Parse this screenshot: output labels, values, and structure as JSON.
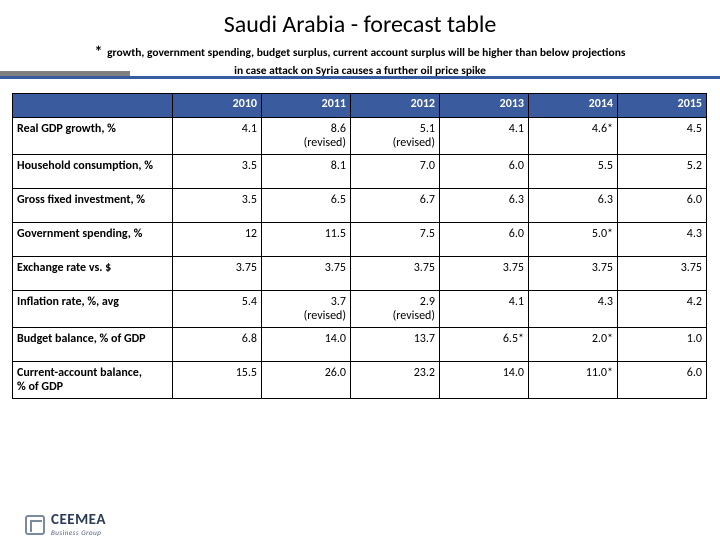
{
  "title": "Saudi Arabia - forecast table",
  "note_line1": "growth, government spending, budget surplus, current account surplus will be higher than below projections",
  "note_line2": "in case attack on Syria causes a further oil price spike",
  "columns": [
    "2010",
    "2011",
    "2012",
    "2013",
    "2014",
    "2015"
  ],
  "rows": [
    {
      "label": "Real GDP growth, %",
      "cells": [
        "4.1",
        "8.6\n(revised)",
        "5.1\n(revised)",
        "4.1",
        "4.6*",
        "4.5"
      ]
    },
    {
      "label": "Household consumption, %",
      "cells": [
        "3.5",
        "8.1",
        "7.0",
        "6.0",
        "5.5",
        "5.2"
      ]
    },
    {
      "label": "Gross fixed investment, %",
      "cells": [
        "3.5",
        "6.5",
        "6.7",
        "6.3",
        "6.3",
        "6.0"
      ]
    },
    {
      "label": "Government spending, %",
      "cells": [
        "12",
        "11.5",
        "7.5",
        "6.0",
        "5.0*",
        "4.3"
      ]
    },
    {
      "label": "Exchange rate vs. $",
      "cells": [
        "3.75",
        "3.75",
        "3.75",
        "3.75",
        "3.75",
        "3.75"
      ]
    },
    {
      "label": "Inflation rate, %, avg",
      "cells": [
        "5.4",
        "3.7\n(revised)",
        "2.9\n(revised)",
        "4.1",
        "4.3",
        "4.2"
      ]
    },
    {
      "label": "Budget balance, % of GDP",
      "cells": [
        "6.8",
        "14.0",
        "13.7",
        "6.5*",
        "2.0*",
        "1.0"
      ]
    },
    {
      "label": "Current-account balance,\n% of GDP",
      "cells": [
        "15.5",
        "26.0",
        "23.2",
        "14.0",
        "11.0*",
        "6.0"
      ]
    }
  ],
  "logo": {
    "name": "CEEMEA",
    "sub": "Business Group"
  },
  "colors": {
    "header_bg": "#3a5b9e",
    "header_text": "#ffffff",
    "border": "#000000",
    "bar_gray": "#808080"
  },
  "fontsize": {
    "title": 24,
    "note": 11.5,
    "cell": 12
  }
}
